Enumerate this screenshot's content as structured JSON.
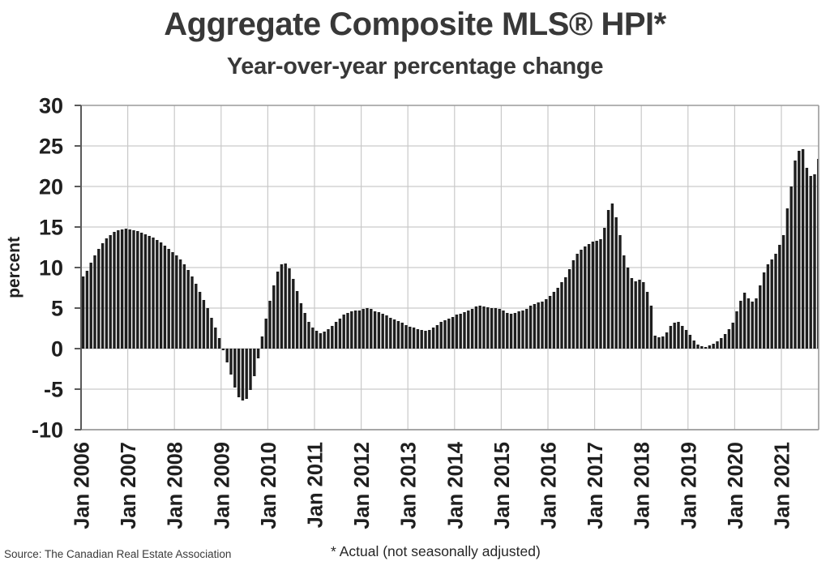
{
  "title": "Aggregate Composite MLS® HPI*",
  "subtitle": "Year-over-year percentage change",
  "source": "Source: The Canadian Real Estate Association",
  "footnote": "* Actual (not seasonally adjusted)",
  "chart_data": {
    "type": "bar",
    "title": "Aggregate Composite MLS® HPI*",
    "subtitle": "Year-over-year percentage change",
    "xlabel": "",
    "ylabel": "percent",
    "ylim": [
      -10,
      30
    ],
    "yticks": [
      30,
      25,
      20,
      15,
      10,
      5,
      0,
      -5,
      -10
    ],
    "grid": true,
    "legend_position": "none",
    "bar_color": "#1e1e1e",
    "grid_color": "#c9c9c9",
    "axis_color": "#5a5a5a",
    "border_color": "#9a9a9a",
    "text_color": "#1f1f1f",
    "xtick_labels": [
      "Jan 2006",
      "Jan 2007",
      "Jan 2008",
      "Jan 2009",
      "Jan 2010",
      "Jan 2011",
      "Jan 2012",
      "Jan 2013",
      "Jan 2014",
      "Jan 2015",
      "Jan 2016",
      "Jan 2017",
      "Jan 2018",
      "Jan 2019",
      "Jan 2020",
      "Jan 2021"
    ],
    "series_name": "Aggregate Composite MLS HPI, year-over-year % change (actual, not seasonally adjusted)",
    "start_month": "2006-01",
    "end_month": "2021-10",
    "values_by_year": {
      "2006": [
        8.9,
        9.6,
        10.6,
        11.5,
        12.3,
        13.0,
        13.6,
        14.0,
        14.4,
        14.6,
        14.7,
        14.8
      ],
      "2007": [
        14.7,
        14.6,
        14.5,
        14.3,
        14.1,
        13.9,
        13.7,
        13.4,
        13.1,
        12.7,
        12.3,
        11.9
      ],
      "2008": [
        11.5,
        11.0,
        10.4,
        9.7,
        8.9,
        8.0,
        7.0,
        6.0,
        5.0,
        3.8,
        2.6,
        1.3
      ],
      "2009": [
        -0.2,
        -1.7,
        -3.2,
        -4.8,
        -6.0,
        -6.4,
        -6.2,
        -5.1,
        -3.4,
        -1.2,
        1.5,
        3.7
      ],
      "2010": [
        5.9,
        7.8,
        9.5,
        10.4,
        10.5,
        9.9,
        8.6,
        7.1,
        5.6,
        4.4,
        3.3,
        2.6
      ],
      "2011": [
        2.2,
        1.9,
        2.1,
        2.4,
        2.8,
        3.3,
        3.7,
        4.2,
        4.4,
        4.6,
        4.7,
        4.7
      ],
      "2012": [
        4.9,
        5.0,
        4.9,
        4.6,
        4.5,
        4.3,
        4.1,
        3.8,
        3.6,
        3.4,
        3.2,
        2.9
      ],
      "2013": [
        2.7,
        2.6,
        2.4,
        2.3,
        2.2,
        2.3,
        2.6,
        2.9,
        3.3,
        3.5,
        3.7,
        3.9
      ],
      "2014": [
        4.2,
        4.3,
        4.5,
        4.7,
        4.9,
        5.2,
        5.3,
        5.2,
        5.1,
        5.0,
        5.0,
        4.9
      ],
      "2015": [
        4.7,
        4.4,
        4.3,
        4.4,
        4.6,
        4.7,
        4.9,
        5.3,
        5.5,
        5.7,
        5.8,
        6.1
      ],
      "2016": [
        6.5,
        7.0,
        7.5,
        8.2,
        8.8,
        9.8,
        10.9,
        11.7,
        12.2,
        12.6,
        12.9,
        13.2
      ],
      "2017": [
        13.3,
        13.5,
        14.9,
        17.1,
        17.9,
        16.2,
        14.0,
        11.5,
        10.0,
        8.7,
        8.3,
        8.5
      ],
      "2018": [
        8.2,
        7.0,
        5.3,
        1.6,
        1.4,
        1.5,
        2.0,
        2.8,
        3.2,
        3.3,
        2.8,
        2.3
      ],
      "2019": [
        1.7,
        1.0,
        0.5,
        0.3,
        0.2,
        0.4,
        0.6,
        0.9,
        1.3,
        1.8,
        2.4,
        3.2
      ],
      "2020": [
        4.6,
        5.9,
        6.9,
        6.2,
        5.8,
        6.2,
        7.8,
        9.4,
        10.4,
        11.0,
        11.7,
        12.8
      ],
      "2021": [
        14.0,
        17.3,
        20.0,
        23.2,
        24.4,
        24.6,
        22.3,
        21.3,
        21.5,
        23.4
      ]
    }
  }
}
